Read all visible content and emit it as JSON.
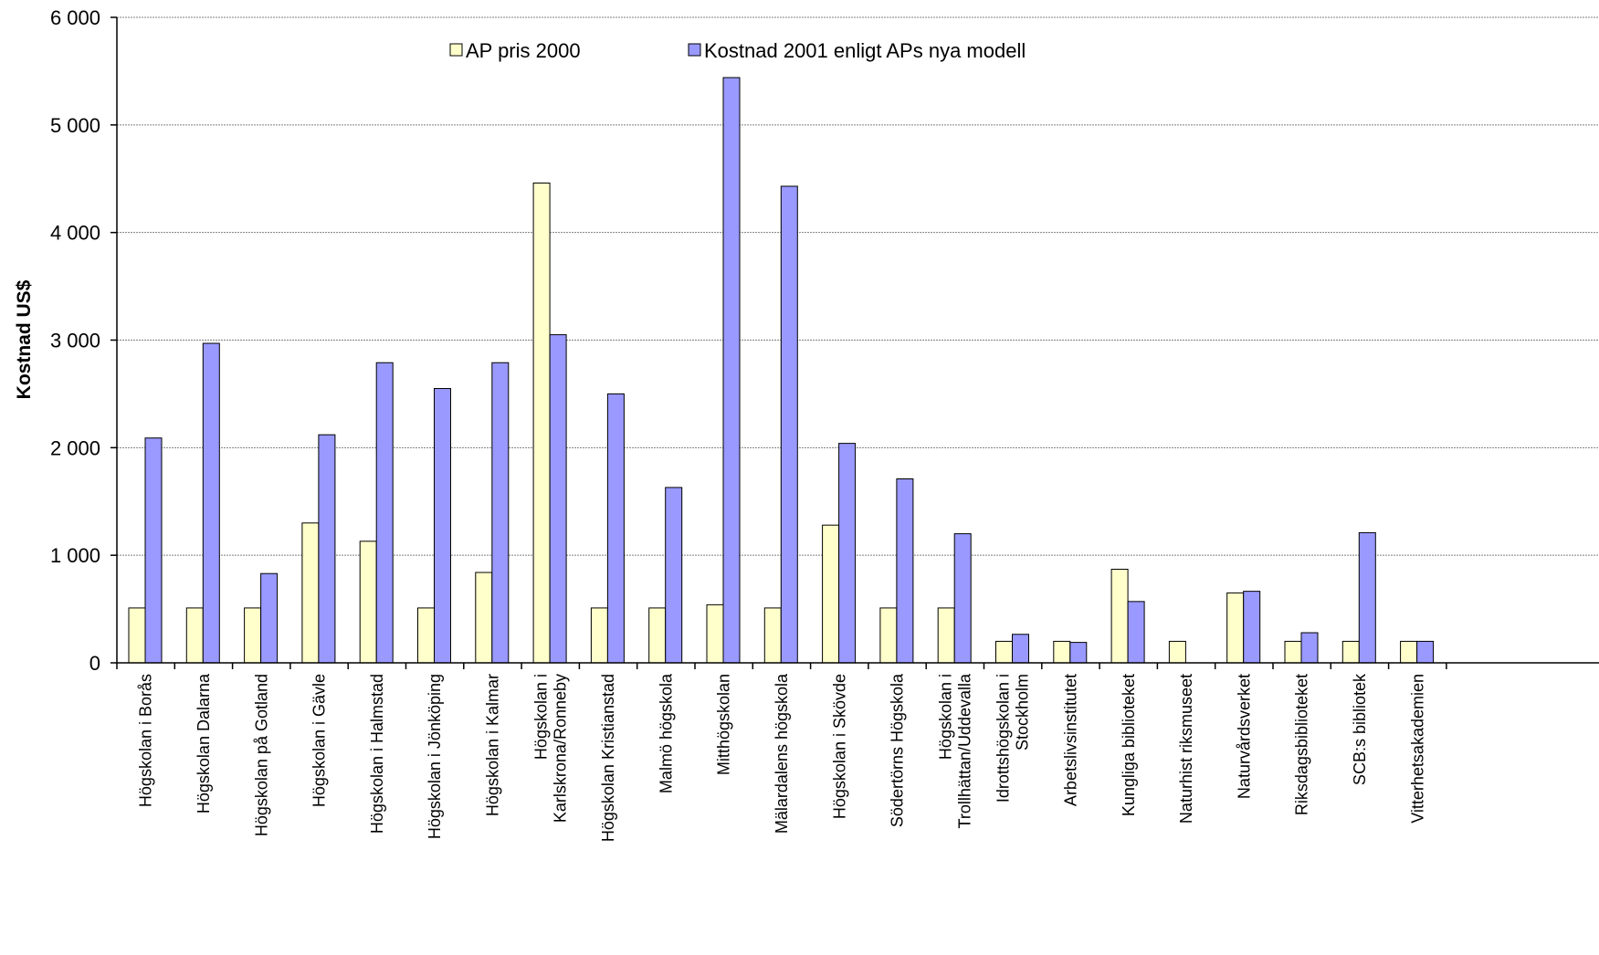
{
  "colors": {
    "ap_fill": "#FFFFCC",
    "kostnad_fill": "#9999FF",
    "bar_stroke": "#000000",
    "grid": "#808080",
    "axis": "#000000"
  },
  "chart_data": {
    "type": "bar",
    "title": "",
    "xlabel": "",
    "ylabel": "Kostnad US$",
    "ylim": [
      0,
      6000
    ],
    "yticks": [
      0,
      1000,
      2000,
      3000,
      4000,
      5000,
      6000
    ],
    "ytick_labels": [
      "0",
      "1 000",
      "2 000",
      "3 000",
      "4 000",
      "5 000",
      "6 000"
    ],
    "grid": true,
    "legend_position": "top",
    "categories": [
      [
        "Högskolan i Borås"
      ],
      [
        "Högskolan Dalarna"
      ],
      [
        "Högskolan på Gotland"
      ],
      [
        "Högskolan i Gävle"
      ],
      [
        "Högskolan i Halmstad"
      ],
      [
        "Högskolan i Jönköping"
      ],
      [
        "Högskolan i Kalmar"
      ],
      [
        "Högskolan i",
        "Karlskrona/Ronneby"
      ],
      [
        "Högskolan Kristianstad"
      ],
      [
        "Malmö högskola"
      ],
      [
        "Mitthögskolan"
      ],
      [
        "Mälardalens högskola"
      ],
      [
        "Högskolan i Skövde"
      ],
      [
        "Södertörns Högskola"
      ],
      [
        "Högskolan i",
        "Trollhättan/Uddevalla"
      ],
      [
        "Idrottshögskolan i",
        "Stockholm"
      ],
      [
        "Arbetslivsinstitutet"
      ],
      [
        "Kungliga biblioteket"
      ],
      [
        "Naturhist riksmuseet"
      ],
      [
        "Naturvårdsverket"
      ],
      [
        "Riksdagsbiblioteket"
      ],
      [
        "SCB:s bibliotek"
      ],
      [
        "Vitterhetsakademien"
      ]
    ],
    "series": [
      {
        "name": "AP pris 2000",
        "color": "#FFFFCC",
        "values": [
          510,
          510,
          510,
          1300,
          1130,
          510,
          840,
          4460,
          510,
          510,
          540,
          510,
          1280,
          510,
          510,
          200,
          200,
          870,
          200,
          650,
          200,
          200,
          200
        ]
      },
      {
        "name": "Kostnad 2001 enligt APs nya modell",
        "color": "#9999FF",
        "values": [
          2090,
          2970,
          830,
          2120,
          2790,
          2550,
          2790,
          3050,
          2500,
          1630,
          5440,
          4430,
          2040,
          1710,
          1200,
          265,
          190,
          570,
          0,
          665,
          280,
          1210,
          200
        ]
      }
    ]
  }
}
